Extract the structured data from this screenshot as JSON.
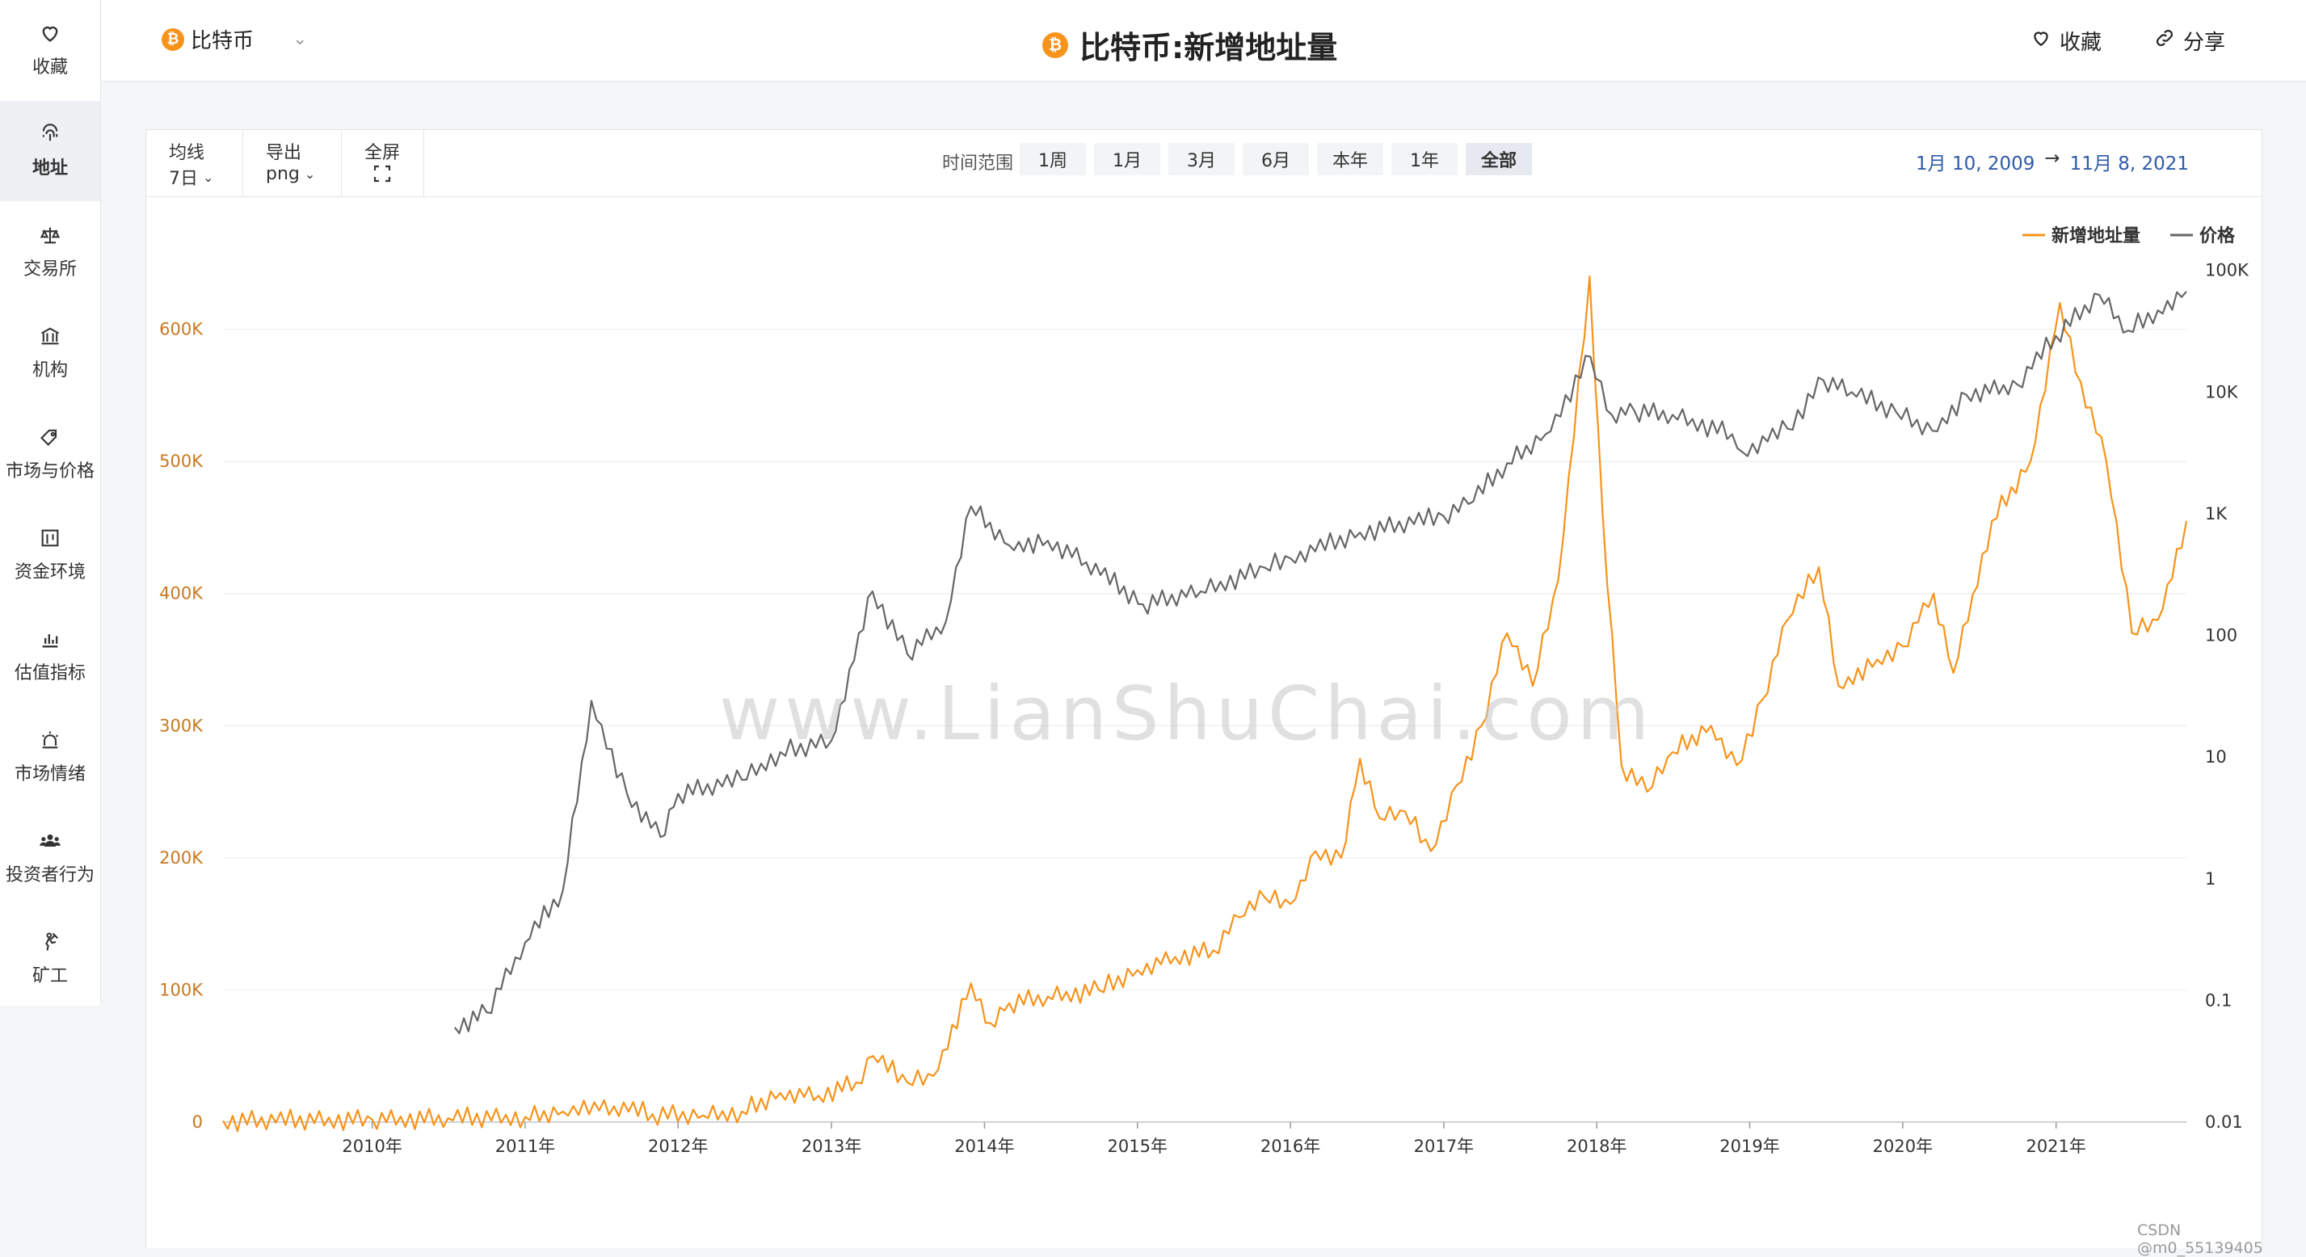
{
  "sidebar": {
    "items": [
      {
        "label": "收藏",
        "icon": "heart-icon"
      },
      {
        "label": "地址",
        "icon": "fingerprint-icon",
        "active": true
      },
      {
        "label": "交易所",
        "icon": "scale-icon"
      },
      {
        "label": "机构",
        "icon": "bank-icon"
      },
      {
        "label": "市场与价格",
        "icon": "tag-icon"
      },
      {
        "label": "资金环境",
        "icon": "money-flow-icon"
      },
      {
        "label": "估值指标",
        "icon": "bar-chart-icon"
      },
      {
        "label": "市场情绪",
        "icon": "siren-icon"
      },
      {
        "label": "投资者行为",
        "icon": "people-icon"
      },
      {
        "label": "矿工",
        "icon": "miner-icon"
      }
    ]
  },
  "header": {
    "coin": "比特币",
    "coin_symbol": "₿",
    "title": "比特币:新增地址量",
    "favorite_label": "收藏",
    "share_label": "分享"
  },
  "toolbar": {
    "ma_label": "均线",
    "ma_value": "7日",
    "export_label": "导出",
    "export_value": "png",
    "fullscreen_label": "全屏",
    "range_label": "时间范围",
    "ranges": [
      "1周",
      "1月",
      "3月",
      "6月",
      "本年",
      "1年",
      "全部"
    ],
    "active_range": "全部",
    "date_from": "1月 10, 2009",
    "date_arrow": "→",
    "date_to": "11月 8, 2021"
  },
  "watermark": "www.LianShuChai.com",
  "footer_credit": "CSDN @m0_55139405",
  "colors": {
    "new_addresses": "#f7931a",
    "price": "#666666",
    "accent": "#f7931a"
  },
  "chart_data": {
    "type": "line",
    "title": "",
    "x_start": "2009-01-10",
    "x_end": "2021-11-08",
    "x_ticks": [
      "2010年",
      "2011年",
      "2012年",
      "2013年",
      "2014年",
      "2015年",
      "2016年",
      "2017年",
      "2018年",
      "2019年",
      "2020年",
      "2021年"
    ],
    "legend": {
      "placement": "top-right",
      "entries": [
        "新增地址量",
        "价格"
      ]
    },
    "y_left": {
      "ticks": [
        "0",
        "100K",
        "200K",
        "300K",
        "400K",
        "500K",
        "600K"
      ],
      "range": [
        0,
        700000
      ],
      "scale": "linear"
    },
    "y_right": {
      "ticks": [
        "0.01",
        "0.1",
        "1",
        "10",
        "100",
        "1K",
        "10K",
        "100K"
      ],
      "range": [
        0.01,
        400000
      ],
      "scale": "log"
    },
    "grid": true,
    "series": [
      {
        "name": "新增地址量",
        "axis": "left",
        "points": [
          [
            "2009-01-10",
            1000
          ],
          [
            "2010-01-01",
            2000
          ],
          [
            "2010-07-01",
            3000
          ],
          [
            "2011-01-01",
            4000
          ],
          [
            "2011-04-01",
            8000
          ],
          [
            "2011-06-15",
            15000
          ],
          [
            "2011-08-01",
            12000
          ],
          [
            "2011-11-01",
            6000
          ],
          [
            "2012-03-01",
            5000
          ],
          [
            "2012-06-01",
            8000
          ],
          [
            "2012-09-01",
            22000
          ],
          [
            "2012-12-01",
            20000
          ],
          [
            "2013-03-01",
            30000
          ],
          [
            "2013-04-10",
            50000
          ],
          [
            "2013-07-01",
            30000
          ],
          [
            "2013-09-01",
            35000
          ],
          [
            "2013-11-30",
            105000
          ],
          [
            "2014-01-15",
            75000
          ],
          [
            "2014-03-01",
            90000
          ],
          [
            "2014-06-01",
            95000
          ],
          [
            "2014-10-01",
            100000
          ],
          [
            "2015-01-01",
            115000
          ],
          [
            "2015-04-01",
            125000
          ],
          [
            "2015-07-01",
            130000
          ],
          [
            "2015-09-01",
            155000
          ],
          [
            "2015-11-01",
            170000
          ],
          [
            "2016-01-01",
            165000
          ],
          [
            "2016-03-01",
            205000
          ],
          [
            "2016-05-01",
            200000
          ],
          [
            "2016-06-15",
            275000
          ],
          [
            "2016-08-01",
            230000
          ],
          [
            "2016-10-01",
            235000
          ],
          [
            "2016-12-01",
            205000
          ],
          [
            "2017-02-01",
            255000
          ],
          [
            "2017-04-01",
            300000
          ],
          [
            "2017-06-01",
            370000
          ],
          [
            "2017-08-01",
            330000
          ],
          [
            "2017-10-01",
            410000
          ],
          [
            "2017-12-15",
            640000
          ],
          [
            "2018-01-15",
            460000
          ],
          [
            "2018-03-01",
            270000
          ],
          [
            "2018-05-01",
            250000
          ],
          [
            "2018-07-01",
            280000
          ],
          [
            "2018-10-01",
            300000
          ],
          [
            "2018-12-01",
            270000
          ],
          [
            "2019-02-01",
            320000
          ],
          [
            "2019-04-01",
            380000
          ],
          [
            "2019-06-15",
            420000
          ],
          [
            "2019-08-01",
            330000
          ],
          [
            "2019-11-01",
            350000
          ],
          [
            "2020-01-01",
            360000
          ],
          [
            "2020-03-15",
            400000
          ],
          [
            "2020-05-01",
            340000
          ],
          [
            "2020-08-01",
            455000
          ],
          [
            "2020-11-01",
            500000
          ],
          [
            "2021-01-10",
            620000
          ],
          [
            "2021-03-01",
            560000
          ],
          [
            "2021-05-01",
            500000
          ],
          [
            "2021-07-01",
            370000
          ],
          [
            "2021-09-01",
            380000
          ],
          [
            "2021-11-08",
            455000
          ]
        ]
      },
      {
        "name": "价格",
        "axis": "right",
        "points": [
          [
            "2010-07-17",
            0.06
          ],
          [
            "2010-10-01",
            0.08
          ],
          [
            "2011-01-01",
            0.3
          ],
          [
            "2011-04-01",
            0.8
          ],
          [
            "2011-06-08",
            29
          ],
          [
            "2011-09-01",
            5
          ],
          [
            "2011-11-20",
            2.2
          ],
          [
            "2012-01-01",
            5
          ],
          [
            "2012-06-01",
            6.5
          ],
          [
            "2012-09-01",
            11
          ],
          [
            "2012-12-31",
            13.5
          ],
          [
            "2013-04-09",
            230
          ],
          [
            "2013-07-01",
            70
          ],
          [
            "2013-10-01",
            130
          ],
          [
            "2013-11-30",
            1150
          ],
          [
            "2014-03-01",
            550
          ],
          [
            "2014-06-01",
            600
          ],
          [
            "2014-09-01",
            400
          ],
          [
            "2015-01-14",
            180
          ],
          [
            "2015-06-01",
            230
          ],
          [
            "2015-11-01",
            360
          ],
          [
            "2016-01-01",
            430
          ],
          [
            "2016-06-15",
            700
          ],
          [
            "2016-12-31",
            960
          ],
          [
            "2017-03-01",
            1200
          ],
          [
            "2017-06-01",
            2600
          ],
          [
            "2017-09-01",
            4500
          ],
          [
            "2017-12-17",
            19500
          ],
          [
            "2018-02-06",
            6500
          ],
          [
            "2018-04-01",
            7000
          ],
          [
            "2018-07-01",
            6500
          ],
          [
            "2018-11-20",
            4500
          ],
          [
            "2018-12-15",
            3200
          ],
          [
            "2019-04-01",
            5000
          ],
          [
            "2019-06-26",
            12500
          ],
          [
            "2019-09-01",
            10000
          ],
          [
            "2019-12-17",
            6800
          ],
          [
            "2020-03-12",
            4800
          ],
          [
            "2020-06-01",
            9500
          ],
          [
            "2020-10-01",
            11500
          ],
          [
            "2020-12-31",
            29000
          ],
          [
            "2021-04-14",
            63000
          ],
          [
            "2021-06-22",
            32000
          ],
          [
            "2021-09-01",
            47000
          ],
          [
            "2021-11-08",
            67000
          ]
        ]
      }
    ]
  }
}
